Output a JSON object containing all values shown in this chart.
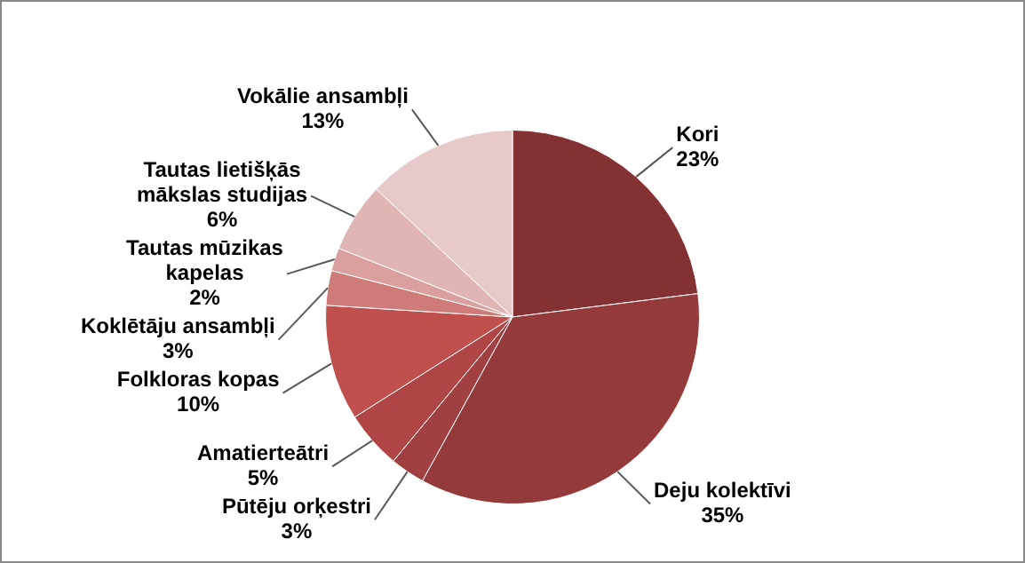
{
  "chart_data": {
    "type": "pie",
    "categories": [
      "Kori",
      "Deju kolektīvi",
      "Pūtēju orķestri",
      "Amatierteātri",
      "Folkloras kopas",
      "Koklētāju ansambļi",
      "Tautas mūzikas kapelas",
      "Tautas lietišķās mākslas studijas",
      "Vokālie ansambļi"
    ],
    "values": [
      23,
      35,
      3,
      5,
      10,
      3,
      2,
      6,
      13
    ],
    "colors": [
      "#843134",
      "#953a3b",
      "#a04040",
      "#b04545",
      "#c0504d",
      "#cf7b79",
      "#d9a09f",
      "#e0b6b5",
      "#e8c9ca"
    ],
    "value_labels": [
      "23%",
      "35%",
      "3%",
      "5%",
      "10%",
      "3%",
      "2%",
      "6%",
      "13%"
    ],
    "legend": false
  }
}
